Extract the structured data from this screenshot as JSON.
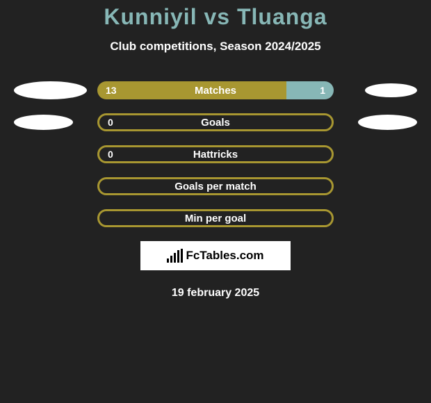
{
  "title_color": "#87b7b6",
  "left_name": "Kunniyil",
  "vs": "vs",
  "right_name": "Tluanga",
  "subtitle": "Club competitions, Season 2024/2025",
  "colors": {
    "left_bar": "#a89731",
    "right_bar": "#87b7b6",
    "border_bar": "#a89731",
    "background": "#222222"
  },
  "rows": [
    {
      "label": "Matches",
      "left_value": "13",
      "right_value": "1",
      "left_pct": 80,
      "right_pct": 20,
      "left_ellipse_w": 105,
      "left_ellipse_h": 26,
      "right_ellipse_w": 75,
      "right_ellipse_h": 20,
      "show_left_val": true,
      "show_right_val": true,
      "fill_mode": "split"
    },
    {
      "label": "Goals",
      "left_value": "0",
      "right_value": "",
      "left_pct": 100,
      "right_pct": 0,
      "left_ellipse_w": 85,
      "left_ellipse_h": 22,
      "right_ellipse_w": 85,
      "right_ellipse_h": 22,
      "show_left_val": true,
      "show_right_val": false,
      "fill_mode": "border"
    },
    {
      "label": "Hattricks",
      "left_value": "0",
      "right_value": "",
      "left_pct": 100,
      "right_pct": 0,
      "left_ellipse_w": 0,
      "left_ellipse_h": 0,
      "right_ellipse_w": 0,
      "right_ellipse_h": 0,
      "show_left_val": true,
      "show_right_val": false,
      "fill_mode": "border"
    },
    {
      "label": "Goals per match",
      "left_value": "",
      "right_value": "",
      "left_pct": 0,
      "right_pct": 0,
      "left_ellipse_w": 0,
      "left_ellipse_h": 0,
      "right_ellipse_w": 0,
      "right_ellipse_h": 0,
      "show_left_val": false,
      "show_right_val": false,
      "fill_mode": "border"
    },
    {
      "label": "Min per goal",
      "left_value": "",
      "right_value": "",
      "left_pct": 0,
      "right_pct": 0,
      "left_ellipse_w": 0,
      "left_ellipse_h": 0,
      "right_ellipse_w": 0,
      "right_ellipse_h": 0,
      "show_left_val": false,
      "show_right_val": false,
      "fill_mode": "border"
    }
  ],
  "attribution": "FcTables.com",
  "date": "19 february 2025"
}
